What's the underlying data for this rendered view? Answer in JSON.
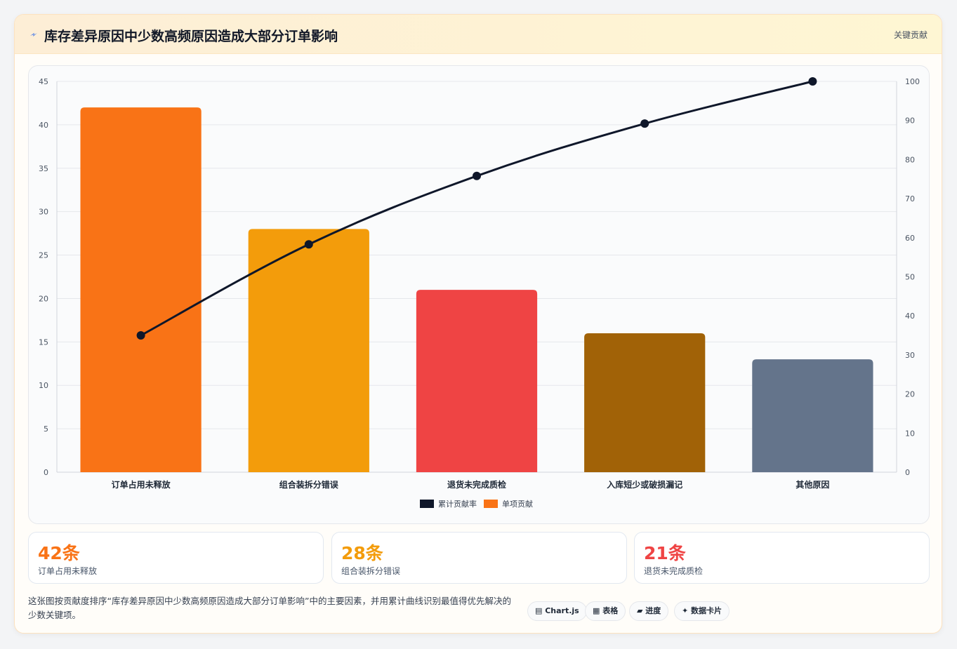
{
  "header": {
    "icon": "lightning-icon",
    "title": "库存差异原因中少数高频原因造成大部分订单影响",
    "tag": "关键贡献"
  },
  "chart_data": {
    "type": "bar",
    "categories": [
      "订单占用未释放",
      "组合装拆分错误",
      "退货未完成质检",
      "入库短少或破损漏记",
      "其他原因"
    ],
    "series": [
      {
        "name": "单项贡献",
        "type": "bar",
        "values": [
          42,
          28,
          21,
          16,
          13
        ],
        "colors": [
          "#f97316",
          "#f39c0b",
          "#ef4444",
          "#a16207",
          "#64748b"
        ],
        "axis": "left"
      },
      {
        "name": "累计贡献率",
        "type": "line",
        "values": [
          35.0,
          58.3,
          75.8,
          89.2,
          100.0
        ],
        "color": "#0f172a",
        "axis": "right"
      }
    ],
    "ylim": [
      0,
      45
    ],
    "yticks": [
      "0",
      "5",
      "10",
      "15",
      "20",
      "25",
      "30",
      "35",
      "40",
      "45"
    ],
    "y2lim": [
      0,
      100
    ],
    "y2ticks": [
      "0",
      "10",
      "20",
      "30",
      "40",
      "50",
      "60",
      "70",
      "80",
      "90",
      "100"
    ],
    "legend": [
      {
        "name": "累计贡献率",
        "color": "#0f172a"
      },
      {
        "name": "单项贡献",
        "color": "#f97316"
      }
    ],
    "legend_position": "bottom",
    "grid": true
  },
  "stats": [
    {
      "value": "42条",
      "label": "订单占用未释放",
      "color": "#f97316"
    },
    {
      "value": "28条",
      "label": "组合装拆分错误",
      "color": "#f39c0b"
    },
    {
      "value": "21条",
      "label": "退货未完成质检",
      "color": "#ef4444"
    }
  ],
  "footer": {
    "description": "这张图按贡献度排序“库存差异原因中少数高频原因造成大部分订单影响”中的主要因素，并用累计曲线识别最值得优先解决的少数关键项。"
  },
  "chips": [
    {
      "label": "▤ Chart.js"
    },
    {
      "label": "▦ 表格"
    },
    {
      "label": "▰ 进度"
    },
    {
      "label": "✦ 数据卡片"
    }
  ]
}
